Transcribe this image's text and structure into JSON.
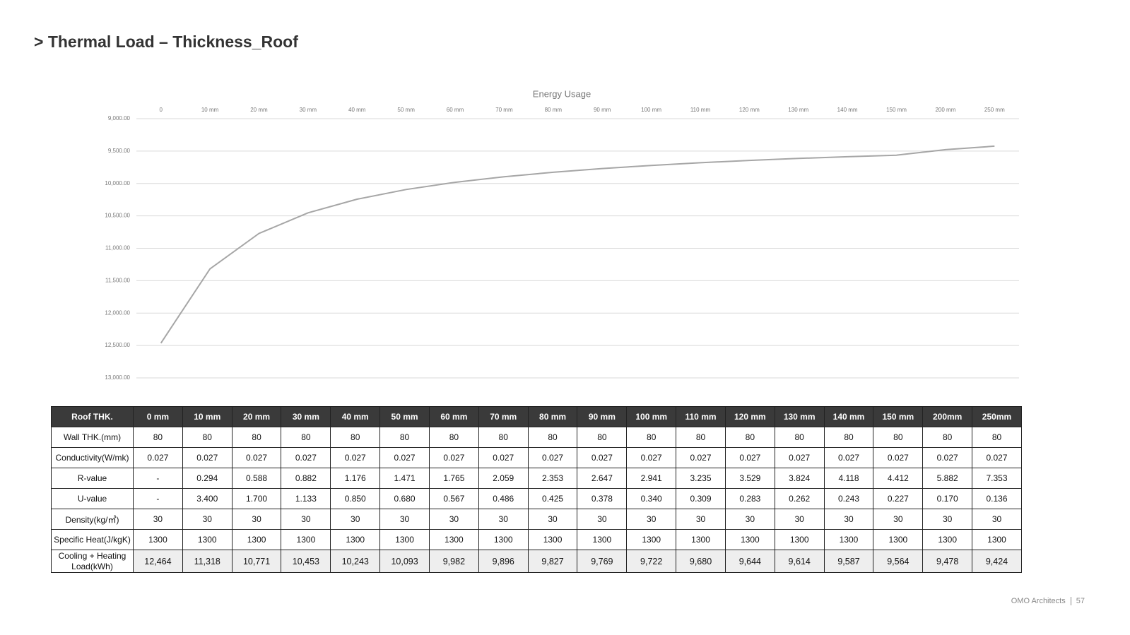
{
  "header": {
    "title": "> Thermal Load – Thickness_Roof"
  },
  "chart_data": {
    "type": "line",
    "title": "Energy Usage",
    "categories": [
      "0",
      "10 mm",
      "20 mm",
      "30 mm",
      "40 mm",
      "50 mm",
      "60 mm",
      "70 mm",
      "80 mm",
      "90 mm",
      "100 mm",
      "110 mm",
      "120 mm",
      "130 mm",
      "140 mm",
      "150 mm",
      "200 mm",
      "250 mm"
    ],
    "values": [
      12464,
      11318,
      10771,
      10453,
      10243,
      10093,
      9982,
      9896,
      9827,
      9769,
      9722,
      9680,
      9644,
      9614,
      9587,
      9564,
      9478,
      9424
    ],
    "color": "#a6a6a6",
    "ylim": [
      9000,
      13000
    ],
    "y_inverted": true,
    "yticks": [
      {
        "value": 9000,
        "label": "9,000.00"
      },
      {
        "value": 9500,
        "label": "9,500.00"
      },
      {
        "value": 10000,
        "label": "10,000.00"
      },
      {
        "value": 10500,
        "label": "10,500.00"
      },
      {
        "value": 11000,
        "label": "11,000.00"
      },
      {
        "value": 11500,
        "label": "11,500.00"
      },
      {
        "value": 12000,
        "label": "12,000.00"
      },
      {
        "value": 12500,
        "label": "12,500.00"
      },
      {
        "value": 13000,
        "label": "13,000.00"
      }
    ],
    "grid": true
  },
  "table": {
    "header": [
      "Roof THK.",
      "0 mm",
      "10 mm",
      "20 mm",
      "30 mm",
      "40 mm",
      "50 mm",
      "60 mm",
      "70 mm",
      "80 mm",
      "90 mm",
      "100 mm",
      "110 mm",
      "120 mm",
      "130 mm",
      "140 mm",
      "150 mm",
      "200mm",
      "250mm"
    ],
    "rows": [
      [
        "Wall THK.(mm)",
        "80",
        "80",
        "80",
        "80",
        "80",
        "80",
        "80",
        "80",
        "80",
        "80",
        "80",
        "80",
        "80",
        "80",
        "80",
        "80",
        "80",
        "80"
      ],
      [
        "Conductivity(W/mk)",
        "0.027",
        "0.027",
        "0.027",
        "0.027",
        "0.027",
        "0.027",
        "0.027",
        "0.027",
        "0.027",
        "0.027",
        "0.027",
        "0.027",
        "0.027",
        "0.027",
        "0.027",
        "0.027",
        "0.027",
        "0.027"
      ],
      [
        "R-value",
        "-",
        "0.294",
        "0.588",
        "0.882",
        "1.176",
        "1.471",
        "1.765",
        "2.059",
        "2.353",
        "2.647",
        "2.941",
        "3.235",
        "3.529",
        "3.824",
        "4.118",
        "4.412",
        "5.882",
        "7.353"
      ],
      [
        "U-value",
        "-",
        "3.400",
        "1.700",
        "1.133",
        "0.850",
        "0.680",
        "0.567",
        "0.486",
        "0.425",
        "0.378",
        "0.340",
        "0.309",
        "0.283",
        "0.262",
        "0.243",
        "0.227",
        "0.170",
        "0.136"
      ],
      [
        "Density(kg/㎥)",
        "30",
        "30",
        "30",
        "30",
        "30",
        "30",
        "30",
        "30",
        "30",
        "30",
        "30",
        "30",
        "30",
        "30",
        "30",
        "30",
        "30",
        "30"
      ],
      [
        "Specific Heat(J/kgK)",
        "1300",
        "1300",
        "1300",
        "1300",
        "1300",
        "1300",
        "1300",
        "1300",
        "1300",
        "1300",
        "1300",
        "1300",
        "1300",
        "1300",
        "1300",
        "1300",
        "1300",
        "1300"
      ],
      [
        "Cooling + Heating Load(kWh)",
        "12,464",
        "11,318",
        "10,771",
        "10,453",
        "10,243",
        "10,093",
        "9,982",
        "9,896",
        "9,827",
        "9,769",
        "9,722",
        "9,680",
        "9,644",
        "9,614",
        "9,587",
        "9,564",
        "9,478",
        "9,424"
      ]
    ]
  },
  "footer": {
    "company": "OMO Architects",
    "page": "57"
  }
}
